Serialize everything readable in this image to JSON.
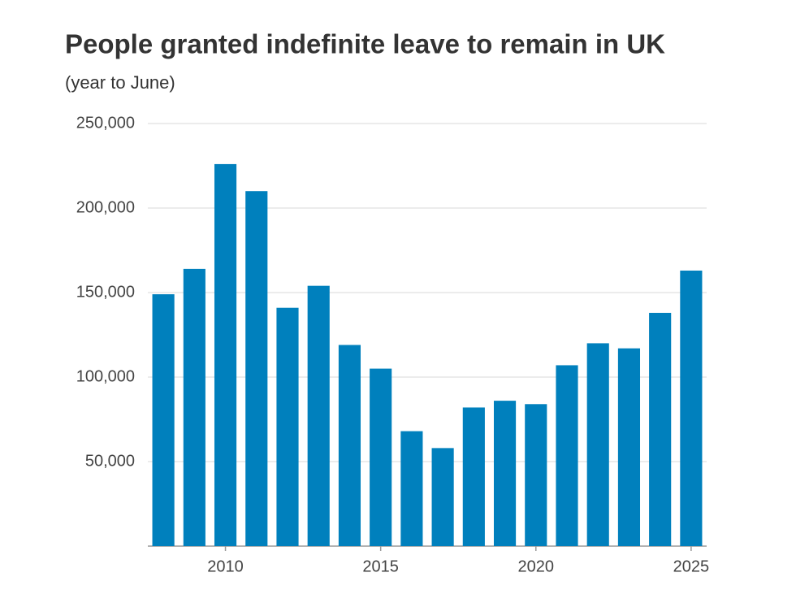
{
  "chart_data": {
    "type": "bar",
    "title": "People granted indefinite leave to remain in UK",
    "subtitle": "(year to June)",
    "x": [
      2008,
      2009,
      2010,
      2011,
      2012,
      2013,
      2014,
      2015,
      2016,
      2017,
      2018,
      2019,
      2020,
      2021,
      2022,
      2023,
      2024,
      2025
    ],
    "values": [
      149000,
      164000,
      226000,
      210000,
      141000,
      154000,
      119000,
      105000,
      68000,
      58000,
      82000,
      86000,
      84000,
      107000,
      120000,
      117000,
      138000,
      163000
    ],
    "color": "#0080bd",
    "xlim": [
      2007.5,
      2025.5
    ],
    "xticks": [
      2010,
      2015,
      2020,
      2025
    ],
    "ylim": [
      0,
      250000
    ],
    "yticks": [
      {
        "value": 50000,
        "label": "50,000"
      },
      {
        "value": 100000,
        "label": "100,000"
      },
      {
        "value": 150000,
        "label": "150,000"
      },
      {
        "value": 200000,
        "label": "200,000"
      },
      {
        "value": 250000,
        "label": "250,000"
      }
    ],
    "grid": true
  }
}
